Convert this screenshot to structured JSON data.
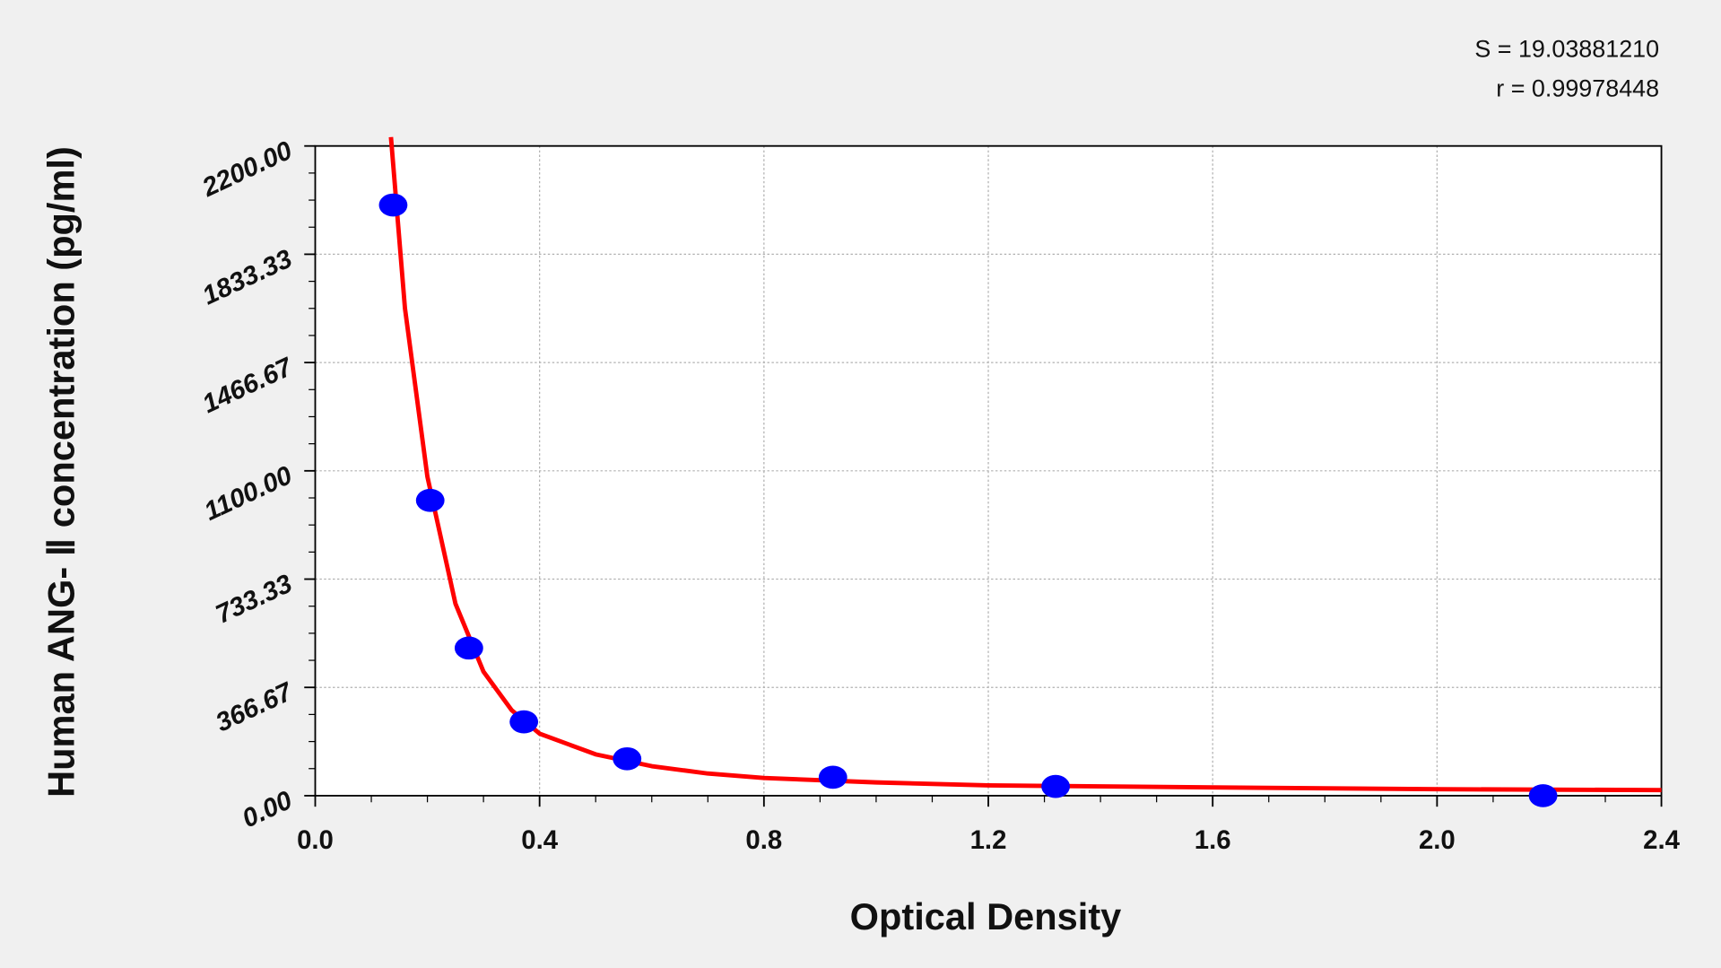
{
  "chart_data": {
    "type": "scatter",
    "xlabel": "Optical Density",
    "ylabel": "Human ANG- Ⅱ  concentration (pg/ml)",
    "annotations": [
      "S = 19.03881210",
      "r = 0.99978448"
    ],
    "xlim": [
      0,
      2.4
    ],
    "ylim": [
      0,
      2200
    ],
    "xticks": [
      {
        "value": 0,
        "label": "0.0"
      },
      0.4,
      0.8,
      1.2,
      1.6,
      {
        "value": 2,
        "label": "2.0"
      },
      2.4
    ],
    "yticks": [
      {
        "value": 0,
        "label": "0.00"
      },
      366.67,
      733.33,
      {
        "value": 1100,
        "label": "1100.00"
      },
      1466.67,
      1833.33,
      {
        "value": 2200,
        "label": "2200.00"
      }
    ],
    "grid": true,
    "series": [
      {
        "color": "#0000ff",
        "x": [
          0.139,
          0.205,
          0.274,
          0.372,
          0.556,
          0.923,
          1.32,
          2.189
        ],
        "values": [
          2000,
          1000,
          500,
          250,
          125,
          62.5,
          31.25,
          0
        ]
      }
    ],
    "curve": {
      "color": "#ff0000",
      "x": [
        0.135,
        0.16,
        0.2,
        0.25,
        0.3,
        0.35,
        0.4,
        0.5,
        0.6,
        0.7,
        0.8,
        1.0,
        1.2,
        1.6,
        2.0,
        2.4
      ],
      "values": [
        2230,
        1650,
        1080,
        650,
        420,
        290,
        210,
        140,
        100,
        75,
        60,
        45,
        35,
        28,
        22,
        19
      ]
    }
  }
}
